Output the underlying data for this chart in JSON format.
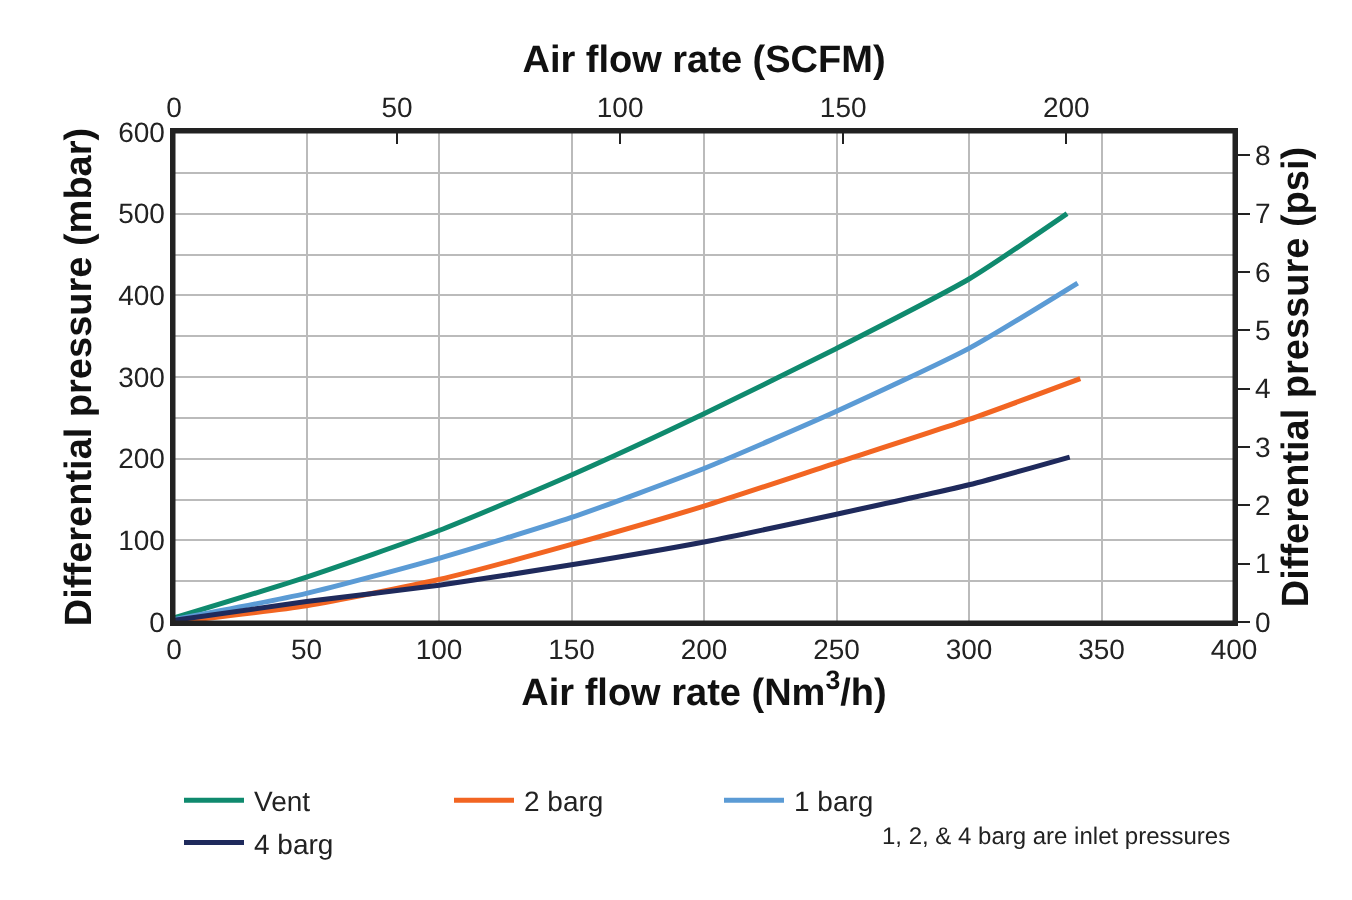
{
  "chart_data": {
    "type": "line",
    "xlabel": "Air flow rate (Nm$^{3}$/h)",
    "ylabel": "Differential pressure (mbar)",
    "y2label": "Differential pressure (psi)",
    "x2label": "Air flow rate (SCFM)",
    "annotations": [
      "1, 2, & 4 barg are inlet pressures"
    ],
    "xlim": [
      0,
      400
    ],
    "xticks": [
      0,
      50,
      100,
      150,
      200,
      250,
      300,
      350,
      400
    ],
    "ylim": [
      0,
      600
    ],
    "yticks": [
      0,
      {
        "value": 50,
        "label": null
      },
      100,
      {
        "value": 150,
        "label": null
      },
      200,
      {
        "value": 250,
        "label": null
      },
      300,
      {
        "value": 350,
        "label": null
      },
      400,
      {
        "value": 450,
        "label": null
      },
      500,
      {
        "value": 550,
        "label": null
      },
      600
    ],
    "y2lim": [
      0,
      8.4
    ],
    "y2ticks": [
      0,
      1,
      2,
      3,
      4,
      5,
      6,
      7,
      8
    ],
    "x2lim": [
      0,
      237.6
    ],
    "x2ticks": [
      0,
      50,
      100,
      150,
      200
    ],
    "grid": true,
    "legend": "bottom",
    "marker": "none",
    "line_style": "solid",
    "series": [
      {
        "name": "Vent",
        "color": "#0f8a6e",
        "x": [
          0,
          50,
          100,
          150,
          200,
          250,
          300,
          337
        ],
        "values": [
          5,
          55,
          112,
          180,
          255,
          335,
          420,
          500
        ]
      },
      {
        "name": "2 barg",
        "color": "#f26522",
        "x": [
          0,
          50,
          100,
          150,
          200,
          250,
          300,
          342
        ],
        "values": [
          0,
          20,
          52,
          95,
          142,
          195,
          248,
          298
        ]
      },
      {
        "name": "1 barg",
        "color": "#5b9bd5",
        "x": [
          0,
          50,
          100,
          150,
          200,
          250,
          300,
          341
        ],
        "values": [
          3,
          35,
          78,
          128,
          188,
          258,
          335,
          415
        ]
      },
      {
        "name": "4 barg",
        "color": "#1f2a5c",
        "x": [
          0,
          50,
          100,
          150,
          200,
          250,
          300,
          338
        ],
        "values": [
          2,
          25,
          45,
          70,
          98,
          132,
          168,
          202
        ]
      }
    ]
  }
}
